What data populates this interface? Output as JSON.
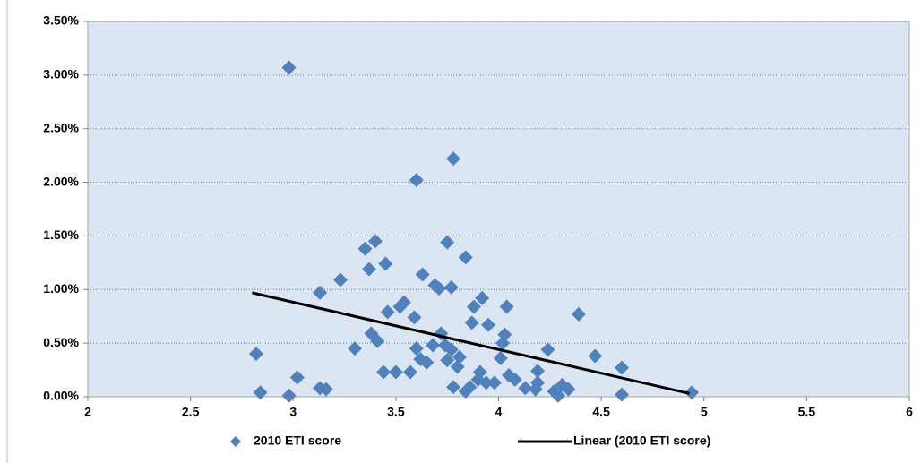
{
  "chart_data": {
    "type": "scatter",
    "series": [
      {
        "name": "2010 ETI score",
        "color": "#4f81bd",
        "x": [
          2.82,
          2.84,
          2.98,
          2.98,
          3.02,
          3.13,
          3.13,
          3.16,
          3.23,
          3.3,
          3.35,
          3.37,
          3.38,
          3.4,
          3.41,
          3.44,
          3.45,
          3.46,
          3.5,
          3.52,
          3.54,
          3.57,
          3.59,
          3.6,
          3.6,
          3.62,
          3.63,
          3.65,
          3.68,
          3.69,
          3.71,
          3.72,
          3.74,
          3.75,
          3.75,
          3.77,
          3.77,
          3.78,
          3.78,
          3.8,
          3.81,
          3.84,
          3.84,
          3.86,
          3.87,
          3.88,
          3.9,
          3.91,
          3.92,
          3.94,
          3.95,
          3.98,
          4.01,
          4.02,
          4.03,
          4.04,
          4.05,
          4.08,
          4.13,
          4.18,
          4.19,
          4.19,
          4.24,
          4.27,
          4.29,
          4.31,
          4.34,
          4.39,
          4.47,
          4.6,
          4.6,
          4.94
        ],
        "values": [
          0.4,
          0.04,
          0.01,
          3.07,
          0.18,
          0.97,
          0.08,
          0.07,
          1.09,
          0.45,
          1.38,
          1.19,
          0.59,
          1.45,
          0.52,
          0.23,
          1.24,
          0.79,
          0.23,
          0.84,
          0.88,
          0.23,
          0.74,
          2.02,
          0.45,
          0.35,
          1.14,
          0.32,
          0.48,
          1.04,
          1.01,
          0.59,
          0.48,
          1.44,
          0.34,
          1.02,
          0.44,
          2.22,
          0.09,
          0.28,
          0.37,
          1.3,
          0.05,
          0.09,
          0.69,
          0.84,
          0.16,
          0.23,
          0.92,
          0.13,
          0.67,
          0.13,
          0.36,
          0.5,
          0.58,
          0.84,
          0.2,
          0.16,
          0.08,
          0.07,
          0.24,
          0.13,
          0.44,
          0.05,
          0.01,
          0.11,
          0.07,
          0.77,
          0.38,
          0.27,
          0.02,
          0.04
        ]
      },
      {
        "name": "Linear (2010 ETI score)",
        "color": "#000000",
        "line": true,
        "x": [
          2.8,
          4.93
        ],
        "values": [
          0.97,
          0.03
        ]
      }
    ],
    "xlim": [
      2,
      6
    ],
    "xticks": [
      2,
      2.5,
      3,
      3.5,
      4,
      4.5,
      5,
      5.5,
      6
    ],
    "ylim": [
      0,
      3.5
    ],
    "yticks": [
      {
        "value": 0,
        "label": "0.00%"
      },
      {
        "value": 0.5,
        "label": "0.50%"
      },
      {
        "value": 1,
        "label": "1.00%"
      },
      {
        "value": 1.5,
        "label": "1.50%"
      },
      {
        "value": 2,
        "label": "2.00%"
      },
      {
        "value": 2.5,
        "label": "2.50%"
      },
      {
        "value": 3,
        "label": "3.00%"
      },
      {
        "value": 3.5,
        "label": "3.50%"
      }
    ],
    "grid": true,
    "legend": "bottom"
  }
}
